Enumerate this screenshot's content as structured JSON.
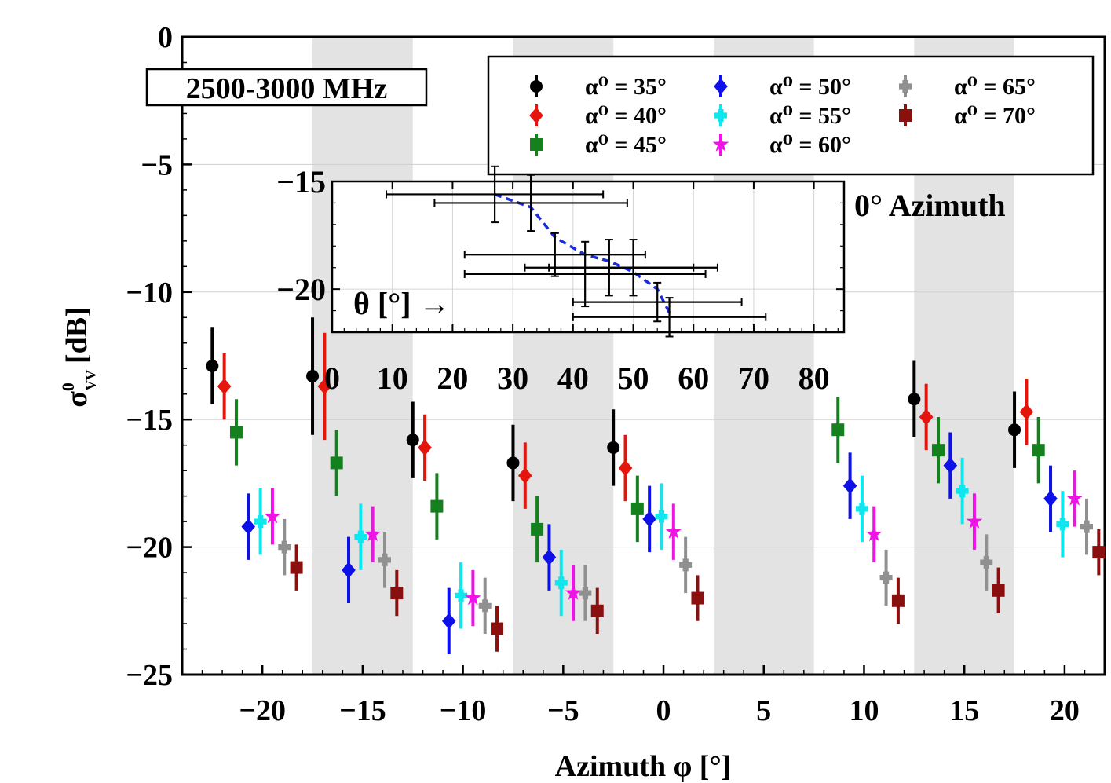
{
  "chart_data": {
    "type": "scatter",
    "subtype": "errorbar",
    "title": "",
    "xlabel": "Azimuth φ [°]",
    "ylabel_main": "σ",
    "ylabel_sup": "0",
    "ylabel_sub": "VV",
    "ylabel_unit": "[dB]",
    "xlim": [
      -24,
      22
    ],
    "ylim": [
      -25,
      0
    ],
    "xticks": [
      -20,
      -15,
      -10,
      -5,
      0,
      5,
      10,
      15,
      20
    ],
    "xtick_labels": [
      "−20",
      "−15",
      "−10",
      "−5",
      "0",
      "5",
      "10",
      "15",
      "20"
    ],
    "yticks": [
      0,
      -5,
      -10,
      -15,
      -20,
      -25
    ],
    "ytick_labels": [
      "0",
      "−5",
      "−10",
      "−15",
      "−20",
      "−25"
    ],
    "grid": true,
    "shaded_bands": [
      [
        -17.5,
        -12.5
      ],
      [
        -7.5,
        -2.5
      ],
      [
        2.5,
        7.5
      ],
      [
        12.5,
        17.5
      ]
    ],
    "annotations": {
      "band_label": "2500-3000 MHz",
      "inset_label": "0° Azimuth"
    },
    "legend": {
      "placement": "top-right",
      "columns": 3
    },
    "series": [
      {
        "name": "α⁰ = 35°",
        "marker": "circle",
        "color": "#000000",
        "points": [
          {
            "x": -22.5,
            "y": -12.9,
            "err": 1.5
          },
          {
            "x": -17.5,
            "y": -13.3,
            "err": 2.3
          },
          {
            "x": -12.5,
            "y": -15.8,
            "err": 1.5
          },
          {
            "x": -7.5,
            "y": -16.7,
            "err": 1.5
          },
          {
            "x": -2.5,
            "y": -16.1,
            "err": 1.5
          },
          {
            "x": 12.5,
            "y": -14.2,
            "err": 1.5
          },
          {
            "x": 17.5,
            "y": -15.4,
            "err": 1.5
          }
        ]
      },
      {
        "name": "α⁰ = 40°",
        "marker": "diamond",
        "color": "#e4150c",
        "points": [
          {
            "x": -21.9,
            "y": -13.7,
            "err": 1.3
          },
          {
            "x": -16.9,
            "y": -13.7,
            "err": 2.1
          },
          {
            "x": -11.9,
            "y": -16.1,
            "err": 1.3
          },
          {
            "x": -6.9,
            "y": -17.2,
            "err": 1.3
          },
          {
            "x": -1.9,
            "y": -16.9,
            "err": 1.3
          },
          {
            "x": 13.1,
            "y": -14.9,
            "err": 1.3
          },
          {
            "x": 18.1,
            "y": -14.7,
            "err": 1.3
          }
        ]
      },
      {
        "name": "α⁰ = 45°",
        "marker": "square",
        "color": "#15801e",
        "points": [
          {
            "x": -21.3,
            "y": -15.5,
            "err": 1.3
          },
          {
            "x": -16.3,
            "y": -16.7,
            "err": 1.3
          },
          {
            "x": -11.3,
            "y": -18.4,
            "err": 1.3
          },
          {
            "x": -6.3,
            "y": -19.3,
            "err": 1.3
          },
          {
            "x": -1.3,
            "y": -18.5,
            "err": 1.3
          },
          {
            "x": 8.7,
            "y": -15.4,
            "err": 1.3
          },
          {
            "x": 13.7,
            "y": -16.2,
            "err": 1.3
          },
          {
            "x": 18.7,
            "y": -16.2,
            "err": 1.3
          }
        ]
      },
      {
        "name": "α⁰ = 50°",
        "marker": "diamond",
        "color": "#0d10e8",
        "points": [
          {
            "x": -20.7,
            "y": -19.2,
            "err": 1.3
          },
          {
            "x": -15.7,
            "y": -20.9,
            "err": 1.3
          },
          {
            "x": -10.7,
            "y": -22.9,
            "err": 1.3
          },
          {
            "x": -5.7,
            "y": -20.4,
            "err": 1.3
          },
          {
            "x": -0.7,
            "y": -18.9,
            "err": 1.3
          },
          {
            "x": 9.3,
            "y": -17.6,
            "err": 1.3
          },
          {
            "x": 14.3,
            "y": -16.8,
            "err": 1.3
          },
          {
            "x": 19.3,
            "y": -18.1,
            "err": 1.3
          }
        ]
      },
      {
        "name": "α⁰ = 55°",
        "marker": "plus",
        "color": "#10e6ee",
        "points": [
          {
            "x": -20.1,
            "y": -19.0,
            "err": 1.3
          },
          {
            "x": -15.1,
            "y": -19.6,
            "err": 1.3
          },
          {
            "x": -10.1,
            "y": -21.9,
            "err": 1.3
          },
          {
            "x": -5.1,
            "y": -21.4,
            "err": 1.3
          },
          {
            "x": -0.1,
            "y": -18.8,
            "err": 1.3
          },
          {
            "x": 9.9,
            "y": -18.5,
            "err": 1.3
          },
          {
            "x": 14.9,
            "y": -17.8,
            "err": 1.3
          },
          {
            "x": 19.9,
            "y": -19.1,
            "err": 1.3
          }
        ]
      },
      {
        "name": "α⁰ = 60°",
        "marker": "star",
        "color": "#ee14e6",
        "points": [
          {
            "x": -19.5,
            "y": -18.8,
            "err": 1.1
          },
          {
            "x": -14.5,
            "y": -19.5,
            "err": 1.1
          },
          {
            "x": -9.5,
            "y": -22.0,
            "err": 1.1
          },
          {
            "x": -4.5,
            "y": -21.8,
            "err": 1.1
          },
          {
            "x": 0.5,
            "y": -19.4,
            "err": 1.1
          },
          {
            "x": 10.5,
            "y": -19.5,
            "err": 1.1
          },
          {
            "x": 15.5,
            "y": -19.0,
            "err": 1.1
          },
          {
            "x": 20.5,
            "y": -18.1,
            "err": 1.1
          }
        ]
      },
      {
        "name": "α⁰ = 65°",
        "marker": "plus",
        "color": "#909090",
        "points": [
          {
            "x": -18.9,
            "y": -20.0,
            "err": 1.1
          },
          {
            "x": -13.9,
            "y": -20.5,
            "err": 1.1
          },
          {
            "x": -8.9,
            "y": -22.3,
            "err": 1.1
          },
          {
            "x": -3.9,
            "y": -21.8,
            "err": 1.1
          },
          {
            "x": 1.1,
            "y": -20.7,
            "err": 1.1
          },
          {
            "x": 11.1,
            "y": -21.2,
            "err": 1.1
          },
          {
            "x": 16.1,
            "y": -20.6,
            "err": 1.1
          },
          {
            "x": 21.1,
            "y": -19.2,
            "err": 1.1
          }
        ]
      },
      {
        "name": "α⁰ = 70°",
        "marker": "square",
        "color": "#8a1010",
        "points": [
          {
            "x": -18.3,
            "y": -20.8,
            "err": 0.9
          },
          {
            "x": -13.3,
            "y": -21.8,
            "err": 0.9
          },
          {
            "x": -8.3,
            "y": -23.2,
            "err": 0.9
          },
          {
            "x": -3.3,
            "y": -22.5,
            "err": 0.9
          },
          {
            "x": 1.7,
            "y": -22.0,
            "err": 0.9
          },
          {
            "x": 11.7,
            "y": -22.1,
            "err": 0.9
          },
          {
            "x": 16.7,
            "y": -21.7,
            "err": 0.9
          },
          {
            "x": 21.7,
            "y": -20.2,
            "err": 0.9
          }
        ]
      }
    ],
    "inset": {
      "xlabel": "θ [°] →",
      "xlim": [
        0,
        85
      ],
      "ylim": [
        -15,
        -22
      ],
      "xticks": [
        0,
        10,
        20,
        30,
        40,
        50,
        60,
        70,
        80
      ],
      "yticks": [
        -15,
        -20
      ],
      "ytick_labels": [
        "−15",
        "−20"
      ],
      "grid": true,
      "points": [
        {
          "x": 27,
          "y": -15.6,
          "xerr": [
            18,
            18
          ],
          "yerr": 1.3
        },
        {
          "x": 33,
          "y": -16.0,
          "xerr": [
            16,
            16
          ],
          "yerr": 1.3
        },
        {
          "x": 37,
          "y": -18.4,
          "xerr": [
            15,
            15
          ],
          "yerr": 1.0
        },
        {
          "x": 42,
          "y": -19.3,
          "xerr": [
            20,
            20
          ],
          "yerr": 1.5
        },
        {
          "x": 46,
          "y": -19.0,
          "xerr": [
            14,
            14
          ],
          "yerr": 1.3
        },
        {
          "x": 50,
          "y": -19.0,
          "xerr": [
            14,
            14
          ],
          "yerr": 1.3
        },
        {
          "x": 54,
          "y": -20.6,
          "xerr": [
            14,
            14
          ],
          "yerr": 0.9
        },
        {
          "x": 56,
          "y": -21.3,
          "xerr": [
            16,
            16
          ],
          "yerr": 0.9
        }
      ],
      "fit_curve": [
        [
          27,
          -15.6
        ],
        [
          33,
          -16.2
        ],
        [
          37,
          -17.6
        ],
        [
          42,
          -18.4
        ],
        [
          46,
          -18.7
        ],
        [
          50,
          -19.2
        ],
        [
          54,
          -20.0
        ],
        [
          56,
          -21.1
        ]
      ]
    }
  }
}
